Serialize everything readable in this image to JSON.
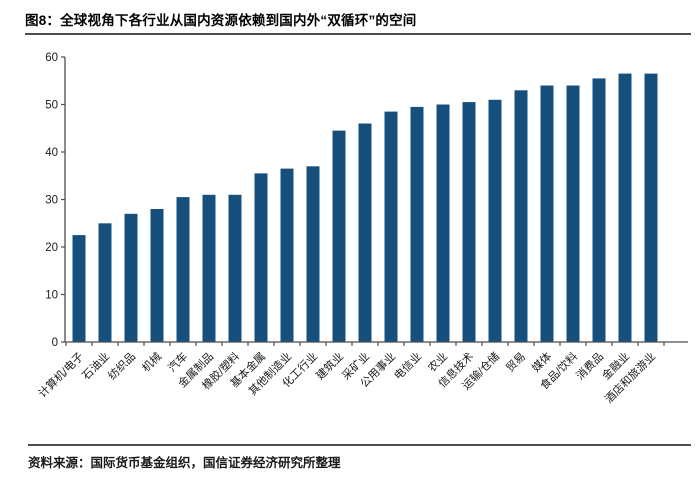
{
  "title": "图8：全球视角下各行业从国内资源依赖到国内外“双循环”的空间",
  "source": "资料来源：国际货币基金组织，国信证券经济研究所整理",
  "colors": {
    "bar": "#174F7C",
    "axis": "#4d4d4d",
    "tick_label": "#1a1a1a",
    "rule": "#4d4d4d"
  },
  "chart_data": {
    "type": "bar",
    "title": "图8：全球视角下各行业从国内资源依赖到国内外“双循环”的空间",
    "categories": [
      "计算机/电子",
      "石油业",
      "纺织品",
      "机械",
      "汽车",
      "金属制品",
      "橡胶/塑料",
      "基本金属",
      "其他制造业",
      "化工行业",
      "建筑业",
      "采矿业",
      "公用事业",
      "电信业",
      "农业",
      "信息技术",
      "运输/仓储",
      "贸易",
      "媒体",
      "食品/饮料",
      "消费品",
      "金融业",
      "酒店和旅游业"
    ],
    "values": [
      22.5,
      25,
      27,
      28,
      30.5,
      31,
      31,
      35.5,
      36.5,
      37,
      44.5,
      46,
      48.5,
      49.5,
      50,
      50.5,
      51,
      53,
      54,
      54,
      55.5,
      56.5,
      56.5
    ],
    "xlabel": "",
    "ylabel": "",
    "ylim": [
      0,
      60
    ],
    "yticks": [
      0,
      10,
      20,
      30,
      40,
      50,
      60
    ],
    "grid": false,
    "legend": false,
    "x_tick_rotation": 45
  }
}
